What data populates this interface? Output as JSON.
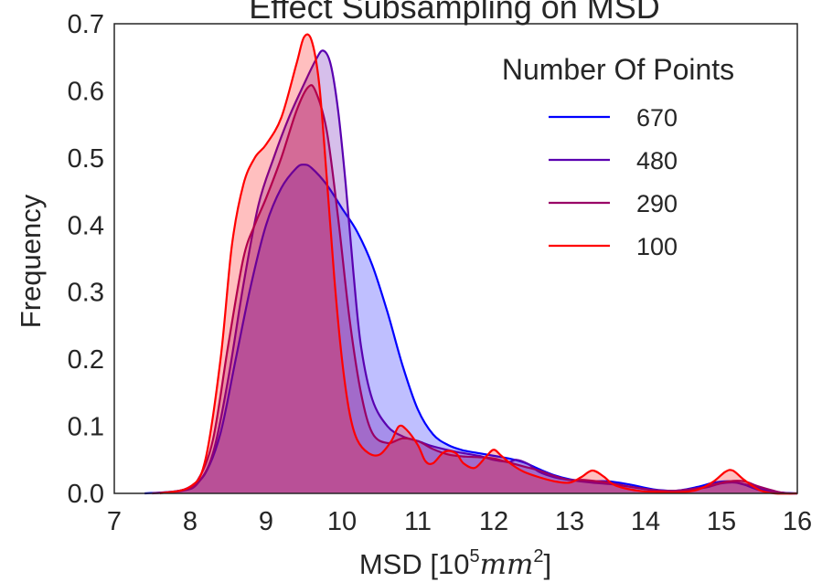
{
  "chart_data": {
    "type": "area",
    "title": "Effect Subsampling on MSD",
    "xlabel": "MSD [10",
    "xlabel_exp": "5",
    "xlabel_unit": "mm",
    "xlabel_unit_exp": "2",
    "xlabel_close": "]",
    "ylabel": "Frequency",
    "xlim": [
      7,
      16
    ],
    "ylim": [
      0,
      0.7
    ],
    "xticks": [
      "7",
      "8",
      "9",
      "10",
      "11",
      "12",
      "13",
      "14",
      "15",
      "16"
    ],
    "yticks": [
      "0.0",
      "0.1",
      "0.2",
      "0.3",
      "0.4",
      "0.5",
      "0.6",
      "0.7"
    ],
    "grid": false,
    "legend": {
      "title": "Number Of Points",
      "position": "top-right"
    },
    "series": [
      {
        "name": "670",
        "color": "#0000ff",
        "points": [
          [
            7.4,
            0
          ],
          [
            7.8,
            0.003
          ],
          [
            8.0,
            0.01
          ],
          [
            8.2,
            0.03
          ],
          [
            8.4,
            0.09
          ],
          [
            8.6,
            0.2
          ],
          [
            8.8,
            0.31
          ],
          [
            9.0,
            0.4
          ],
          [
            9.2,
            0.455
          ],
          [
            9.4,
            0.485
          ],
          [
            9.5,
            0.49
          ],
          [
            9.6,
            0.485
          ],
          [
            9.8,
            0.46
          ],
          [
            10.0,
            0.425
          ],
          [
            10.2,
            0.39
          ],
          [
            10.4,
            0.34
          ],
          [
            10.6,
            0.27
          ],
          [
            10.8,
            0.19
          ],
          [
            11.0,
            0.125
          ],
          [
            11.2,
            0.088
          ],
          [
            11.4,
            0.072
          ],
          [
            11.6,
            0.064
          ],
          [
            11.8,
            0.06
          ],
          [
            12.0,
            0.056
          ],
          [
            12.2,
            0.052
          ],
          [
            12.4,
            0.046
          ],
          [
            12.6,
            0.036
          ],
          [
            12.8,
            0.027
          ],
          [
            13.0,
            0.021
          ],
          [
            13.2,
            0.018
          ],
          [
            13.5,
            0.018
          ],
          [
            13.8,
            0.013
          ],
          [
            14.1,
            0.006
          ],
          [
            14.4,
            0.004
          ],
          [
            14.7,
            0.01
          ],
          [
            14.9,
            0.016
          ],
          [
            15.1,
            0.018
          ],
          [
            15.3,
            0.013
          ],
          [
            15.5,
            0.005
          ],
          [
            15.8,
            0.001
          ],
          [
            16.0,
            0
          ]
        ]
      },
      {
        "name": "480",
        "color": "#5a00b0",
        "points": [
          [
            7.5,
            0
          ],
          [
            7.9,
            0.004
          ],
          [
            8.1,
            0.015
          ],
          [
            8.3,
            0.06
          ],
          [
            8.5,
            0.17
          ],
          [
            8.7,
            0.31
          ],
          [
            8.9,
            0.43
          ],
          [
            9.1,
            0.5
          ],
          [
            9.3,
            0.56
          ],
          [
            9.5,
            0.61
          ],
          [
            9.65,
            0.645
          ],
          [
            9.75,
            0.66
          ],
          [
            9.85,
            0.64
          ],
          [
            9.95,
            0.57
          ],
          [
            10.05,
            0.46
          ],
          [
            10.15,
            0.33
          ],
          [
            10.25,
            0.22
          ],
          [
            10.4,
            0.14
          ],
          [
            10.6,
            0.1
          ],
          [
            10.8,
            0.085
          ],
          [
            11.0,
            0.078
          ],
          [
            11.2,
            0.07
          ],
          [
            11.5,
            0.062
          ],
          [
            11.8,
            0.056
          ],
          [
            12.0,
            0.05
          ],
          [
            12.2,
            0.047
          ],
          [
            12.3,
            0.05
          ],
          [
            12.45,
            0.044
          ],
          [
            12.6,
            0.032
          ],
          [
            12.8,
            0.024
          ],
          [
            13.0,
            0.02
          ],
          [
            13.3,
            0.016
          ],
          [
            13.6,
            0.013
          ],
          [
            13.9,
            0.008
          ],
          [
            14.2,
            0.004
          ],
          [
            14.5,
            0.004
          ],
          [
            14.8,
            0.009
          ],
          [
            15.0,
            0.015
          ],
          [
            15.2,
            0.016
          ],
          [
            15.4,
            0.011
          ],
          [
            15.6,
            0.004
          ],
          [
            15.9,
            0
          ],
          [
            16.0,
            0
          ]
        ]
      },
      {
        "name": "290",
        "color": "#990066",
        "points": [
          [
            7.5,
            0
          ],
          [
            7.9,
            0.005
          ],
          [
            8.1,
            0.02
          ],
          [
            8.3,
            0.08
          ],
          [
            8.5,
            0.22
          ],
          [
            8.7,
            0.35
          ],
          [
            8.85,
            0.4
          ],
          [
            9.0,
            0.44
          ],
          [
            9.2,
            0.5
          ],
          [
            9.4,
            0.57
          ],
          [
            9.55,
            0.605
          ],
          [
            9.65,
            0.6
          ],
          [
            9.8,
            0.54
          ],
          [
            9.95,
            0.41
          ],
          [
            10.1,
            0.26
          ],
          [
            10.25,
            0.15
          ],
          [
            10.4,
            0.09
          ],
          [
            10.6,
            0.075
          ],
          [
            10.8,
            0.082
          ],
          [
            11.0,
            0.078
          ],
          [
            11.2,
            0.066
          ],
          [
            11.4,
            0.058
          ],
          [
            11.6,
            0.055
          ],
          [
            11.8,
            0.054
          ],
          [
            12.0,
            0.052
          ],
          [
            12.2,
            0.046
          ],
          [
            12.4,
            0.04
          ],
          [
            12.6,
            0.034
          ],
          [
            12.8,
            0.026
          ],
          [
            13.0,
            0.02
          ],
          [
            13.2,
            0.02
          ],
          [
            13.5,
            0.016
          ],
          [
            13.8,
            0.01
          ],
          [
            14.1,
            0.005
          ],
          [
            14.4,
            0.004
          ],
          [
            14.7,
            0.008
          ],
          [
            14.9,
            0.013
          ],
          [
            15.1,
            0.018
          ],
          [
            15.3,
            0.018
          ],
          [
            15.5,
            0.01
          ],
          [
            15.8,
            0.001
          ],
          [
            16.0,
            0
          ]
        ]
      },
      {
        "name": "100",
        "color": "#ff0000",
        "points": [
          [
            7.6,
            0
          ],
          [
            8.0,
            0.01
          ],
          [
            8.2,
            0.05
          ],
          [
            8.4,
            0.2
          ],
          [
            8.55,
            0.37
          ],
          [
            8.7,
            0.46
          ],
          [
            8.85,
            0.5
          ],
          [
            9.0,
            0.52
          ],
          [
            9.2,
            0.56
          ],
          [
            9.4,
            0.64
          ],
          [
            9.5,
            0.68
          ],
          [
            9.6,
            0.675
          ],
          [
            9.7,
            0.61
          ],
          [
            9.8,
            0.47
          ],
          [
            9.9,
            0.32
          ],
          [
            10.0,
            0.2
          ],
          [
            10.1,
            0.12
          ],
          [
            10.2,
            0.08
          ],
          [
            10.35,
            0.06
          ],
          [
            10.5,
            0.058
          ],
          [
            10.65,
            0.078
          ],
          [
            10.75,
            0.1
          ],
          [
            10.85,
            0.095
          ],
          [
            11.0,
            0.072
          ],
          [
            11.1,
            0.048
          ],
          [
            11.2,
            0.045
          ],
          [
            11.35,
            0.062
          ],
          [
            11.5,
            0.06
          ],
          [
            11.6,
            0.045
          ],
          [
            11.75,
            0.038
          ],
          [
            11.9,
            0.055
          ],
          [
            12.0,
            0.065
          ],
          [
            12.1,
            0.056
          ],
          [
            12.25,
            0.042
          ],
          [
            12.4,
            0.032
          ],
          [
            12.6,
            0.024
          ],
          [
            12.8,
            0.018
          ],
          [
            13.0,
            0.016
          ],
          [
            13.15,
            0.024
          ],
          [
            13.3,
            0.034
          ],
          [
            13.45,
            0.025
          ],
          [
            13.6,
            0.012
          ],
          [
            13.9,
            0.004
          ],
          [
            14.2,
            0.002
          ],
          [
            14.5,
            0.002
          ],
          [
            14.7,
            0.006
          ],
          [
            14.9,
            0.018
          ],
          [
            15.05,
            0.032
          ],
          [
            15.15,
            0.034
          ],
          [
            15.3,
            0.02
          ],
          [
            15.5,
            0.005
          ],
          [
            15.7,
            0
          ],
          [
            16.0,
            0
          ]
        ]
      }
    ]
  }
}
